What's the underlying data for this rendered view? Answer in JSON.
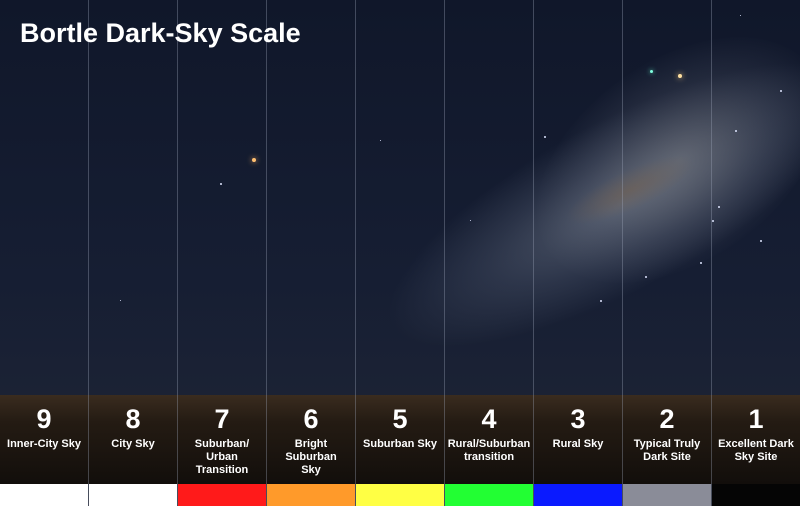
{
  "title": "Bortle Dark-Sky Scale",
  "columns": [
    {
      "number": "9",
      "label": "Inner-City Sky",
      "color": "#ffffff"
    },
    {
      "number": "8",
      "label": "City Sky",
      "color": "#ffffff"
    },
    {
      "number": "7",
      "label": "Suburban/\nUrban\nTransition",
      "color": "#ff1a1a"
    },
    {
      "number": "6",
      "label": "Bright\nSuburban\nSky",
      "color": "#ff9a2a"
    },
    {
      "number": "5",
      "label": "Suburban Sky",
      "color": "#ffff44"
    },
    {
      "number": "4",
      "label": "Rural/Suburban\ntransition",
      "color": "#22ff33"
    },
    {
      "number": "3",
      "label": "Rural Sky",
      "color": "#0a1aff"
    },
    {
      "number": "2",
      "label": "Typical Truly\nDark Site",
      "color": "#8a8c98"
    },
    {
      "number": "1",
      "label": "Excellent Dark\nSky Site",
      "color": "#050505"
    }
  ]
}
